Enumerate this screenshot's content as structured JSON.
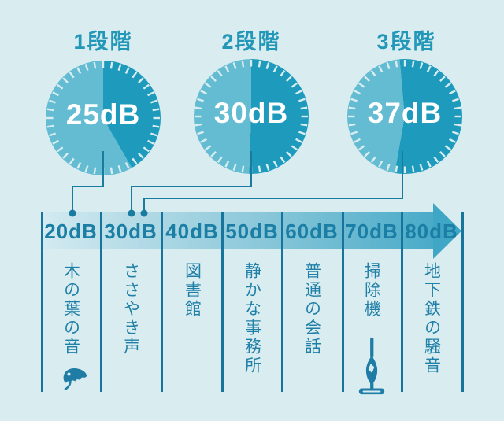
{
  "stages": [
    {
      "label": "1段階",
      "value": "25dB",
      "fill_from_deg": 0,
      "fill_to_deg": 150
    },
    {
      "label": "2段階",
      "value": "30dB",
      "fill_from_deg": 0,
      "fill_to_deg": 182
    },
    {
      "label": "3段階",
      "value": "37dB",
      "fill_from_deg": -5,
      "fill_to_deg": 190
    }
  ],
  "scale": {
    "items": [
      {
        "db": "20dB",
        "desc": "木の葉の音",
        "icon": "ginkgo-leaf"
      },
      {
        "db": "30dB",
        "desc": "ささやき声",
        "icon": null
      },
      {
        "db": "40dB",
        "desc": "図書館",
        "icon": null
      },
      {
        "db": "50dB",
        "desc": "静かな事務所",
        "icon": null
      },
      {
        "db": "60dB",
        "desc": "普通の会話",
        "icon": null
      },
      {
        "db": "70dB",
        "desc": "掃除機",
        "icon": "vacuum-cleaner"
      },
      {
        "db": "80dB",
        "desc": "地下鉄の騒音",
        "icon": null
      }
    ]
  },
  "colors": {
    "background": "#d9edf1",
    "gauge_light": "#64bcd2",
    "gauge_dark": "#1d9abc",
    "gauge_value_text": "#ffffff",
    "stage_title": "#2397b8",
    "band_start": "#d3eaf0",
    "band_end": "#49abc8",
    "arrowhead": "#3fa6c6",
    "db_label": "#1a7ea5",
    "divider": "#17749c",
    "connector": "#1a7ba1",
    "description_text": "#1f7fa6",
    "icon": "#1e7ca5"
  }
}
